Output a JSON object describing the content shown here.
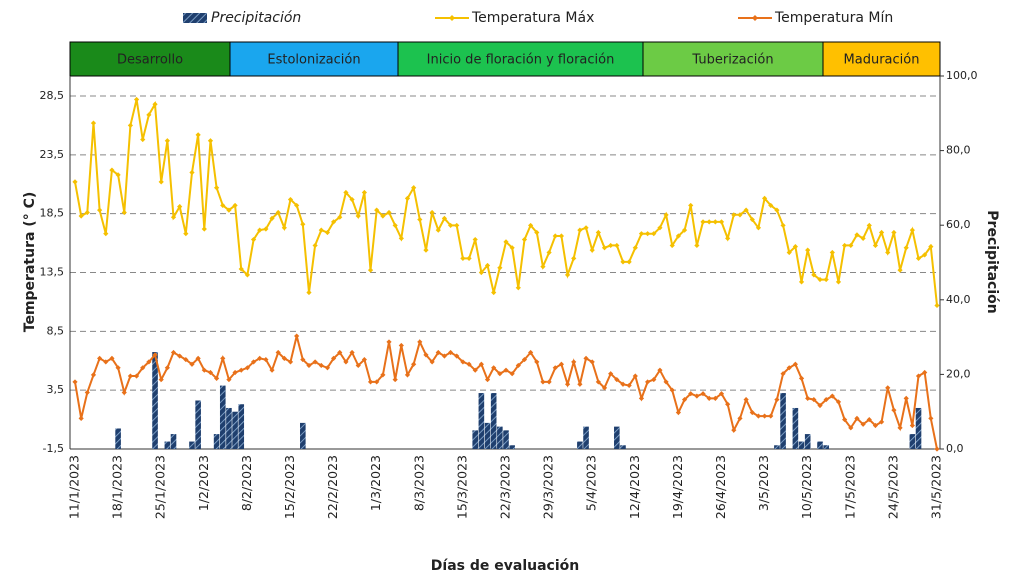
{
  "chart_data": {
    "type": "combo",
    "legend": [
      {
        "name": "Precipitación",
        "color": "#1f3f6e"
      },
      {
        "name": "Temperatura Máx",
        "color": "#f5c000"
      },
      {
        "name": "Temperatura Mín",
        "color": "#e8711a"
      }
    ],
    "phases": [
      {
        "name": "Desarrollo",
        "color": "#1a8a1a"
      },
      {
        "name": "Estolonización",
        "color": "#1aa6ee"
      },
      {
        "name": "Inicio de floración y floración",
        "color": "#1cc24f"
      },
      {
        "name": "Tuberización",
        "color": "#6ccb45"
      },
      {
        "name": "Maduración",
        "color": "#ffc000"
      }
    ],
    "ylabel": "Temperatura  (° C)",
    "y2label": "Precipitación",
    "xlabel": "Días de evaluación",
    "ylim": [
      -1.5,
      30.2
    ],
    "yticks": [
      {
        "value": -1.5,
        "label": "-1,5"
      },
      {
        "value": 3.5,
        "label": "3,5"
      },
      {
        "value": 8.5,
        "label": "8,5"
      },
      {
        "value": 13.5,
        "label": "13,5"
      },
      {
        "value": 18.5,
        "label": "18,5"
      },
      {
        "value": 23.5,
        "label": "23,5"
      },
      {
        "value": 28.5,
        "label": "28,5"
      }
    ],
    "y2lim": [
      0,
      100
    ],
    "y2ticks": [
      {
        "value": 0,
        "label": "0,0"
      },
      {
        "value": 20,
        "label": "20,0"
      },
      {
        "value": 40,
        "label": "40,0"
      },
      {
        "value": 60,
        "label": "60,0"
      },
      {
        "value": 80,
        "label": "80,0"
      },
      {
        "value": 100,
        "label": "100,0"
      }
    ],
    "grid": true,
    "categories": [
      "11/1/2023",
      null,
      null,
      null,
      null,
      null,
      null,
      "18/1/2023",
      null,
      null,
      null,
      null,
      null,
      null,
      "25/1/2023",
      null,
      null,
      null,
      null,
      null,
      null,
      "1/2/2023",
      null,
      null,
      null,
      null,
      null,
      null,
      "8/2/2023",
      null,
      null,
      null,
      null,
      null,
      null,
      "15/2/2023",
      null,
      null,
      null,
      null,
      null,
      null,
      "22/2/2023",
      null,
      null,
      null,
      null,
      null,
      null,
      "1/3/2023",
      null,
      null,
      null,
      null,
      null,
      null,
      "8/3/2023",
      null,
      null,
      null,
      null,
      null,
      null,
      "15/3/2023",
      null,
      null,
      null,
      null,
      null,
      null,
      "22/3/2023",
      null,
      null,
      null,
      null,
      null,
      null,
      "29/3/2023",
      null,
      null,
      null,
      null,
      null,
      null,
      "5/4/2023",
      null,
      null,
      null,
      null,
      null,
      null,
      "12/4/2023",
      null,
      null,
      null,
      null,
      null,
      null,
      "19/4/2023",
      null,
      null,
      null,
      null,
      null,
      null,
      "26/4/2023",
      null,
      null,
      null,
      null,
      null,
      null,
      "3/5/2023",
      null,
      null,
      null,
      null,
      null,
      null,
      "10/5/2023",
      null,
      null,
      null,
      null,
      null,
      null,
      "17/5/2023",
      null,
      null,
      null,
      null,
      null,
      null,
      "24/5/2023",
      null,
      null,
      null,
      null,
      null,
      null,
      "31/5/2023"
    ],
    "series": [
      {
        "name": "Precipitación",
        "type": "bar",
        "axis": "y2",
        "color": "#1f3f6e",
        "values": [
          0,
          0,
          0,
          0,
          0,
          0,
          0,
          5.5,
          0,
          0,
          0,
          0,
          0,
          26,
          0,
          2,
          4,
          0,
          0,
          2,
          13,
          0,
          0,
          4,
          17,
          11,
          10,
          12,
          0,
          0,
          0,
          0,
          0,
          0,
          0,
          0,
          0,
          7,
          0,
          0,
          0,
          0,
          0,
          0,
          0,
          0,
          0,
          0,
          0,
          0,
          0,
          0,
          0,
          0,
          0,
          0,
          0,
          0,
          0,
          0,
          0,
          0,
          0,
          0,
          0,
          5,
          15,
          7,
          15,
          6,
          5,
          1,
          0,
          0,
          0,
          0,
          0,
          0,
          0,
          0,
          0,
          0,
          2,
          6,
          0,
          0,
          0,
          0,
          6,
          1,
          0,
          0,
          0,
          0,
          0,
          0,
          0,
          0,
          0,
          0,
          0,
          0,
          0,
          0,
          0,
          0,
          0,
          0,
          0,
          0,
          0,
          0,
          0,
          0,
          1,
          15,
          0,
          11,
          2,
          4,
          0,
          2,
          1,
          0,
          0,
          0,
          0,
          0,
          0,
          0,
          0,
          0,
          0,
          0,
          0,
          0,
          4,
          11,
          0,
          0,
          0
        ]
      },
      {
        "name": "Temperatura Máx",
        "type": "line",
        "color": "#f5c000",
        "values": [
          21.2,
          18.3,
          18.6,
          26.2,
          18.8,
          16.8,
          22.2,
          21.8,
          18.6,
          26.0,
          28.2,
          24.8,
          26.9,
          27.8,
          21.2,
          24.7,
          18.2,
          19.1,
          16.8,
          22.0,
          25.2,
          17.2,
          24.7,
          20.7,
          19.2,
          18.8,
          19.2,
          13.8,
          13.3,
          16.3,
          17.1,
          17.2,
          18.1,
          18.6,
          17.3,
          19.7,
          19.2,
          17.6,
          11.8,
          15.8,
          17.1,
          16.9,
          17.8,
          18.2,
          20.3,
          19.7,
          18.3,
          20.3,
          13.7,
          18.8,
          18.3,
          18.6,
          17.5,
          16.4,
          19.8,
          20.7,
          18.0,
          15.4,
          18.6,
          17.1,
          18.1,
          17.5,
          17.5,
          14.7,
          14.7,
          16.3,
          13.5,
          14.1,
          11.8,
          13.9,
          16.1,
          15.6,
          12.2,
          16.3,
          17.5,
          16.9,
          14.0,
          15.2,
          16.6,
          16.6,
          13.3,
          14.7,
          17.1,
          17.3,
          15.4,
          16.9,
          15.6,
          15.8,
          15.8,
          14.4,
          14.4,
          15.6,
          16.8,
          16.8,
          16.8,
          17.3,
          18.4,
          15.8,
          16.6,
          17.1,
          19.2,
          15.8,
          17.8,
          17.8,
          17.8,
          17.8,
          16.4,
          18.4,
          18.4,
          18.8,
          18.0,
          17.3,
          19.8,
          19.2,
          18.8,
          17.5,
          15.2,
          15.7,
          12.7,
          15.4,
          13.3,
          12.9,
          12.9,
          15.2,
          12.7,
          15.8,
          15.8,
          16.7,
          16.4,
          17.5,
          15.8,
          16.9,
          15.2,
          16.9,
          13.7,
          15.6,
          17.1,
          14.7,
          15.0,
          15.7,
          10.7
        ]
      },
      {
        "name": "Temperatura Mín",
        "type": "line",
        "color": "#e8711a",
        "values": [
          4.2,
          1.1,
          3.3,
          4.8,
          6.2,
          5.9,
          6.2,
          5.4,
          3.3,
          4.7,
          4.7,
          5.4,
          5.9,
          6.5,
          4.4,
          5.4,
          6.7,
          6.4,
          6.1,
          5.7,
          6.2,
          5.2,
          5.0,
          4.5,
          6.2,
          4.4,
          5.0,
          5.2,
          5.4,
          5.9,
          6.2,
          6.1,
          5.2,
          6.7,
          6.2,
          5.9,
          8.1,
          6.1,
          5.6,
          5.9,
          5.6,
          5.4,
          6.2,
          6.7,
          5.9,
          6.7,
          5.6,
          6.1,
          4.2,
          4.2,
          4.8,
          7.6,
          4.4,
          7.3,
          4.8,
          5.7,
          7.6,
          6.5,
          5.9,
          6.7,
          6.4,
          6.7,
          6.4,
          5.9,
          5.7,
          5.2,
          5.7,
          4.4,
          5.4,
          4.9,
          5.2,
          4.9,
          5.6,
          6.1,
          6.7,
          5.9,
          4.2,
          4.2,
          5.4,
          5.7,
          4.0,
          5.9,
          4.0,
          6.2,
          5.9,
          4.2,
          3.7,
          4.9,
          4.4,
          4.0,
          3.9,
          4.7,
          2.8,
          4.2,
          4.4,
          5.2,
          4.2,
          3.5,
          1.6,
          2.7,
          3.2,
          3.0,
          3.2,
          2.8,
          2.8,
          3.2,
          2.3,
          0.1,
          1.1,
          2.7,
          1.6,
          1.3,
          1.3,
          1.3,
          2.7,
          4.9,
          5.4,
          5.7,
          4.5,
          2.8,
          2.7,
          2.2,
          2.7,
          3.0,
          2.5,
          1.0,
          0.3,
          1.1,
          0.6,
          1.0,
          0.5,
          0.8,
          3.7,
          1.8,
          0.3,
          2.8,
          0.5,
          4.7,
          5.0,
          1.1,
          -1.5
        ]
      }
    ]
  }
}
